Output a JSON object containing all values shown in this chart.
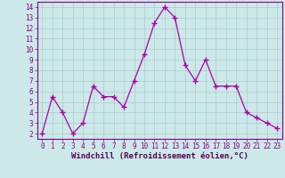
{
  "x": [
    0,
    1,
    2,
    3,
    4,
    5,
    6,
    7,
    8,
    9,
    10,
    11,
    12,
    13,
    14,
    15,
    16,
    17,
    18,
    19,
    20,
    21,
    22,
    23
  ],
  "y": [
    2,
    5.5,
    4,
    2,
    3,
    6.5,
    5.5,
    5.5,
    4.5,
    7,
    9.5,
    12.5,
    14,
    13,
    8.5,
    7,
    9,
    6.5,
    6.5,
    6.5,
    4,
    3.5,
    3,
    2.5
  ],
  "line_color": "#aa00aa",
  "marker": "+",
  "marker_size": 4,
  "bg_color": "#cce8e8",
  "grid_color": "#aacccc",
  "xlabel": "Windchill (Refroidissement éolien,°C)",
  "xlim": [
    -0.5,
    23.5
  ],
  "ylim": [
    1.5,
    14.5
  ],
  "yticks": [
    2,
    3,
    4,
    5,
    6,
    7,
    8,
    9,
    10,
    11,
    12,
    13,
    14
  ],
  "xticks": [
    0,
    1,
    2,
    3,
    4,
    5,
    6,
    7,
    8,
    9,
    10,
    11,
    12,
    13,
    14,
    15,
    16,
    17,
    18,
    19,
    20,
    21,
    22,
    23
  ],
  "tick_color": "#880088",
  "label_color": "#550055",
  "border_color": "#880088",
  "font_size": 5.5,
  "xlabel_font_size": 6.5
}
